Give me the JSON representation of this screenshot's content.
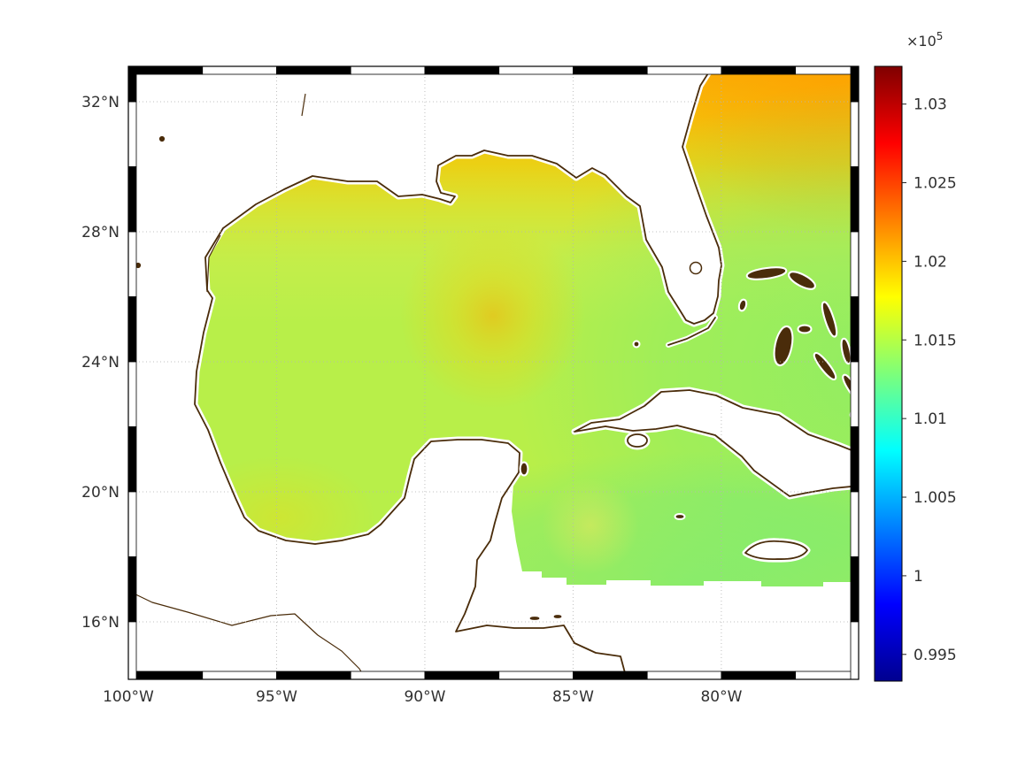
{
  "chart_data": {
    "type": "heatmap",
    "description": "Geographic pseudocolor (filled contour) map of the Gulf of Mexico and northwest Caribbean. Ocean field shaded with a jet colormap, land white with dark-brown coastlines, dotted graticule, MATLAB-style alternating black/white map frame, vertical jet colorbar at right with values scaled by 10^5.",
    "title": "",
    "xlabel": "",
    "ylabel": "",
    "lon_range_deg": [
      -100,
      -75.37
    ],
    "lat_range_deg": [
      14.23,
      33.09
    ],
    "grid": {
      "visible": true,
      "style": "dotted"
    },
    "frame": {
      "style": "alternating-black-white",
      "lon_step": 2.5,
      "lat_step": 2,
      "lat_first_edge": 32
    },
    "lon_ticks": [
      {
        "value": -100,
        "label": "100°W"
      },
      {
        "value": -95,
        "label": "95°W"
      },
      {
        "value": -90,
        "label": "90°W"
      },
      {
        "value": -85,
        "label": "85°W"
      },
      {
        "value": -80,
        "label": "80°W"
      }
    ],
    "lat_ticks": [
      {
        "value": 32,
        "label": "32°N"
      },
      {
        "value": 28,
        "label": "28°N"
      },
      {
        "value": 24,
        "label": "24°N"
      },
      {
        "value": 20,
        "label": "20°N"
      },
      {
        "value": 16,
        "label": "16°N"
      }
    ],
    "colorbar": {
      "multiplier_base": "×10",
      "multiplier_exp": "5",
      "colormap": "jet",
      "clim": [
        0.9933,
        1.0324
      ],
      "ticks": [
        {
          "value": 1.03,
          "label": "1.03"
        },
        {
          "value": 1.025,
          "label": "1.025"
        },
        {
          "value": 1.02,
          "label": "1.02"
        },
        {
          "value": 1.015,
          "label": "1.015"
        },
        {
          "value": 1.01,
          "label": "1.01"
        },
        {
          "value": 1.005,
          "label": "1.005"
        },
        {
          "value": 1.0,
          "label": "1"
        },
        {
          "value": 0.995,
          "label": "0.995"
        }
      ],
      "stops": [
        {
          "offset": 0,
          "color": "#7f0000"
        },
        {
          "offset": 0.125,
          "color": "#ff0000"
        },
        {
          "offset": 0.375,
          "color": "#ffff00"
        },
        {
          "offset": 0.5,
          "color": "#7dff7a"
        },
        {
          "offset": 0.625,
          "color": "#00ffff"
        },
        {
          "offset": 0.875,
          "color": "#0000ff"
        },
        {
          "offset": 1,
          "color": "#00008f"
        }
      ]
    },
    "field_samples_x1e5": {
      "comment": "Approximate field values (units ×10^5) read from the map colors; null = land or outside model domain.",
      "lons_west": [
        97.5,
        95,
        92.5,
        90,
        87.5,
        85,
        82.5,
        80,
        77.5
      ],
      "lats_north": [
        30,
        28,
        26,
        24,
        22,
        20,
        18
      ],
      "values": [
        [
          null,
          1.019,
          1.0195,
          1.02,
          1.0205,
          1.0195,
          null,
          1.0205,
          1.0205
        ],
        [
          1.018,
          1.0178,
          1.0175,
          1.0176,
          1.0175,
          1.017,
          1.017,
          1.0185,
          1.018
        ],
        [
          1.0168,
          1.0165,
          1.0164,
          1.0165,
          1.017,
          1.0165,
          1.0158,
          1.016,
          1.0158
        ],
        [
          1.016,
          1.016,
          1.016,
          1.0162,
          1.0172,
          1.016,
          1.0152,
          1.0148,
          1.0145
        ],
        [
          null,
          1.016,
          1.0156,
          1.0155,
          null,
          1.015,
          null,
          1.0143,
          1.014
        ],
        [
          null,
          1.0168,
          1.0163,
          null,
          null,
          1.0145,
          1.014,
          1.0138,
          1.0135
        ],
        [
          null,
          null,
          null,
          null,
          null,
          1.015,
          1.014,
          1.0138,
          1.0133
        ]
      ]
    },
    "colors": {
      "ocean_base": "#b8ef49",
      "north_band": "#ffb300",
      "top_right_orange": "#ff9d00",
      "warm_spot": "#ffae00",
      "southeast_green": "#5fe88a",
      "east_green": "#69eb7d",
      "coastline": "#4a2c0a",
      "land": "#ffffff",
      "grid": "#b5b5b5",
      "tick_text": "#303030"
    }
  }
}
